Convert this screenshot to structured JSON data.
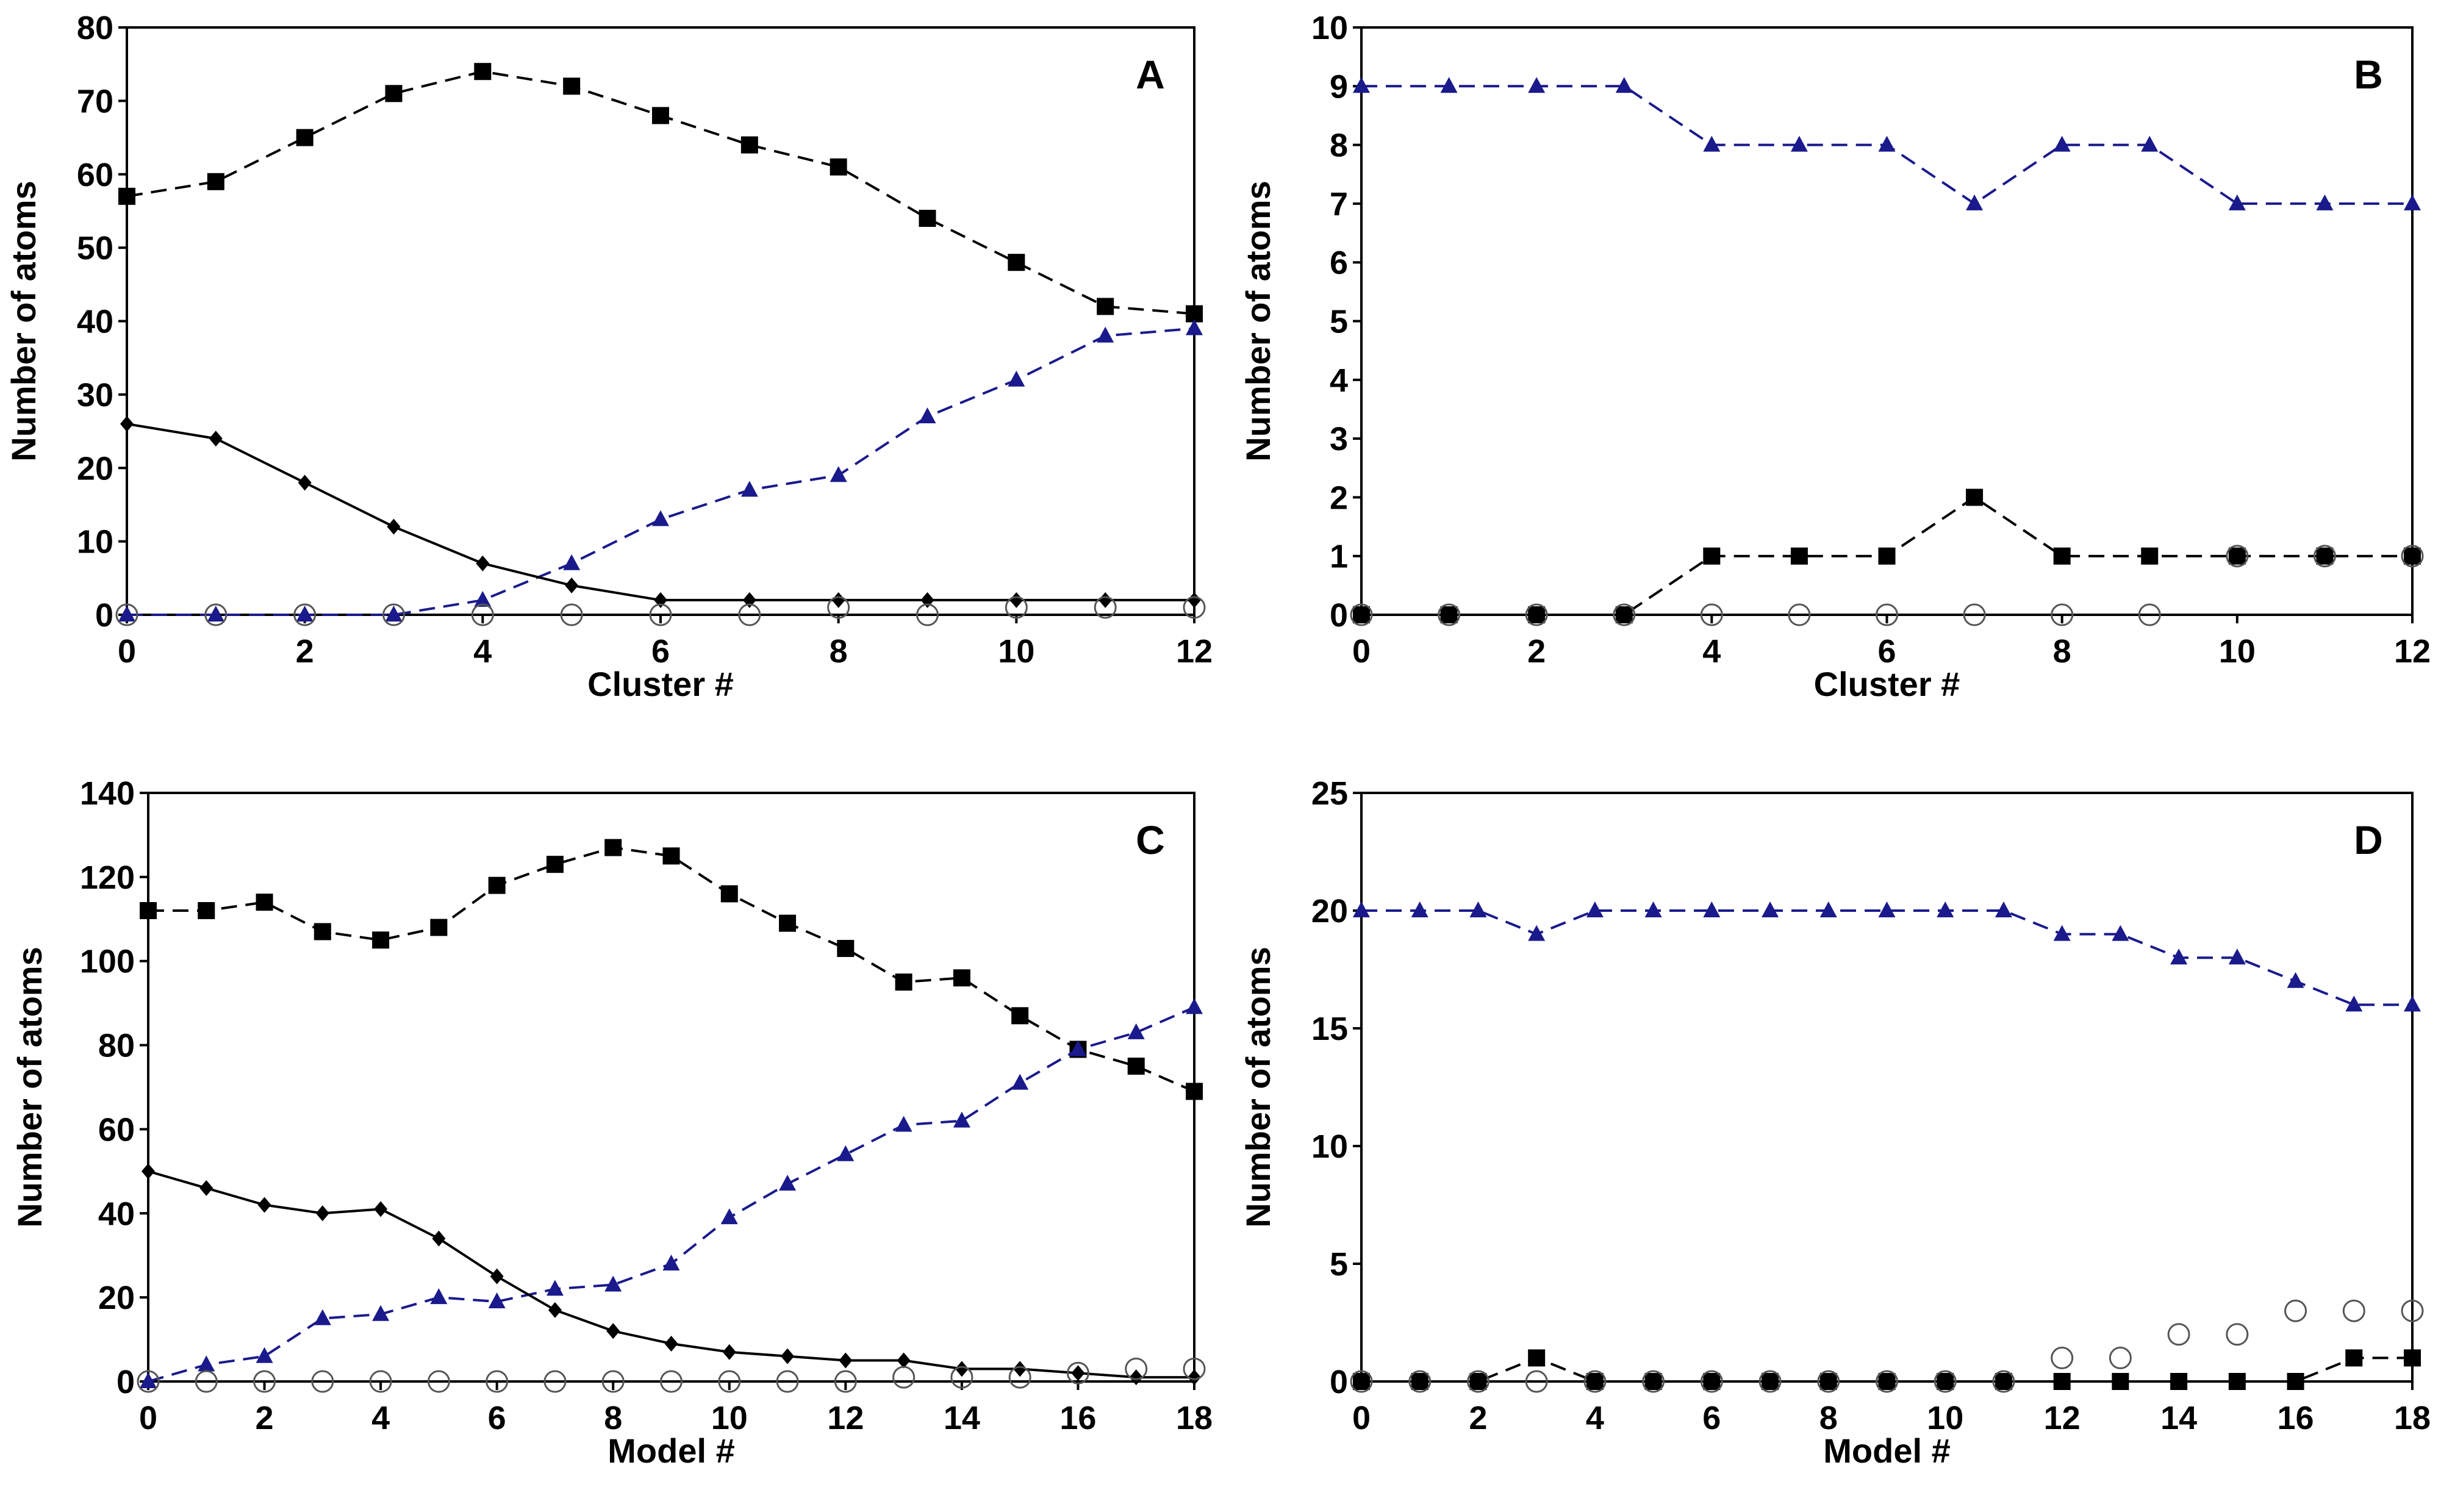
{
  "chart_data": [
    {
      "type": "line",
      "panel_label": "A",
      "xlabel": "Cluster #",
      "ylabel": "Number of atoms",
      "xlim": [
        0,
        12
      ],
      "ylim": [
        0,
        80
      ],
      "x_ticks": [
        0,
        2,
        4,
        6,
        8,
        10,
        12
      ],
      "y_ticks": [
        0,
        10,
        20,
        30,
        40,
        50,
        60,
        70,
        80
      ],
      "grid": false,
      "legend": "none",
      "series": [
        {
          "marker": "square",
          "color": "#000000",
          "dashed": true,
          "x": [
            0,
            1,
            2,
            3,
            4,
            5,
            6,
            7,
            8,
            9,
            10,
            11,
            12
          ],
          "values": [
            57,
            59,
            65,
            71,
            74,
            72,
            68,
            64,
            61,
            54,
            48,
            42,
            41
          ]
        },
        {
          "marker": "triangle",
          "color": "#1a1a8c",
          "dashed": true,
          "x": [
            0,
            1,
            2,
            3,
            4,
            5,
            6,
            7,
            8,
            9,
            10,
            11,
            12
          ],
          "values": [
            0,
            0,
            0,
            0,
            2,
            7,
            13,
            17,
            19,
            27,
            32,
            38,
            39
          ]
        },
        {
          "marker": "diamond",
          "color": "#000000",
          "dashed": false,
          "x": [
            0,
            1,
            2,
            3,
            4,
            5,
            6,
            7,
            8,
            9,
            10,
            11,
            12
          ],
          "values": [
            26,
            24,
            18,
            12,
            7,
            4,
            2,
            2,
            2,
            2,
            2,
            2,
            2
          ]
        },
        {
          "marker": "circle",
          "color": "#555555",
          "dashed": false,
          "line": false,
          "x": [
            0,
            1,
            2,
            3,
            4,
            5,
            6,
            7,
            8,
            9,
            10,
            11,
            12
          ],
          "values": [
            0,
            0,
            0,
            0,
            0,
            0,
            0,
            0,
            1,
            0,
            1,
            1,
            1
          ]
        }
      ]
    },
    {
      "type": "line",
      "panel_label": "B",
      "xlabel": "Cluster #",
      "ylabel": "Number of atoms",
      "xlim": [
        0,
        12
      ],
      "ylim": [
        0,
        10
      ],
      "x_ticks": [
        0,
        2,
        4,
        6,
        8,
        10,
        12
      ],
      "y_ticks": [
        0,
        1,
        2,
        3,
        4,
        5,
        6,
        7,
        8,
        9,
        10
      ],
      "grid": false,
      "legend": "none",
      "series": [
        {
          "marker": "triangle",
          "color": "#1a1a8c",
          "dashed": true,
          "x": [
            0,
            1,
            2,
            3,
            4,
            5,
            6,
            7,
            8,
            9,
            10,
            11,
            12
          ],
          "values": [
            9,
            9,
            9,
            9,
            8,
            8,
            8,
            7,
            8,
            8,
            7,
            7,
            7
          ]
        },
        {
          "marker": "square",
          "color": "#000000",
          "dashed": true,
          "x": [
            0,
            1,
            2,
            3,
            4,
            5,
            6,
            7,
            8,
            9,
            10,
            11,
            12
          ],
          "values": [
            0,
            0,
            0,
            0,
            1,
            1,
            1,
            2,
            1,
            1,
            1,
            1,
            1
          ]
        },
        {
          "marker": "circle",
          "color": "#555555",
          "dashed": false,
          "line": false,
          "x": [
            0,
            1,
            2,
            3,
            4,
            5,
            6,
            7,
            8,
            9,
            10,
            11,
            12
          ],
          "values": [
            0,
            0,
            0,
            0,
            0,
            0,
            0,
            0,
            0,
            0,
            1,
            1,
            1
          ]
        }
      ]
    },
    {
      "type": "line",
      "panel_label": "C",
      "xlabel": "Model #",
      "ylabel": "Number of atoms",
      "xlim": [
        0,
        18
      ],
      "ylim": [
        0,
        140
      ],
      "x_ticks": [
        0,
        2,
        4,
        6,
        8,
        10,
        12,
        14,
        16,
        18
      ],
      "y_ticks": [
        0,
        20,
        40,
        60,
        80,
        100,
        120,
        140
      ],
      "grid": false,
      "legend": "none",
      "series": [
        {
          "marker": "square",
          "color": "#000000",
          "dashed": true,
          "x": [
            0,
            1,
            2,
            3,
            4,
            5,
            6,
            7,
            8,
            9,
            10,
            11,
            12,
            13,
            14,
            15,
            16,
            17,
            18
          ],
          "values": [
            112,
            112,
            114,
            107,
            105,
            108,
            118,
            123,
            127,
            125,
            116,
            109,
            103,
            95,
            96,
            87,
            79,
            75,
            69
          ]
        },
        {
          "marker": "triangle",
          "color": "#1a1a8c",
          "dashed": true,
          "x": [
            0,
            1,
            2,
            3,
            4,
            5,
            6,
            7,
            8,
            9,
            10,
            11,
            12,
            13,
            14,
            15,
            16,
            17,
            18
          ],
          "values": [
            0,
            4,
            6,
            15,
            16,
            20,
            19,
            22,
            23,
            28,
            39,
            47,
            54,
            61,
            62,
            71,
            79,
            83,
            89
          ]
        },
        {
          "marker": "diamond",
          "color": "#000000",
          "dashed": false,
          "x": [
            0,
            1,
            2,
            3,
            4,
            5,
            6,
            7,
            8,
            9,
            10,
            11,
            12,
            13,
            14,
            15,
            16,
            17,
            18
          ],
          "values": [
            50,
            46,
            42,
            40,
            41,
            34,
            25,
            17,
            12,
            9,
            7,
            6,
            5,
            5,
            3,
            3,
            2,
            1,
            1
          ]
        },
        {
          "marker": "circle",
          "color": "#555555",
          "dashed": false,
          "line": false,
          "x": [
            0,
            1,
            2,
            3,
            4,
            5,
            6,
            7,
            8,
            9,
            10,
            11,
            12,
            13,
            14,
            15,
            16,
            17,
            18
          ],
          "values": [
            0,
            0,
            0,
            0,
            0,
            0,
            0,
            0,
            0,
            0,
            0,
            0,
            0,
            1,
            1,
            1,
            2,
            3,
            3
          ]
        }
      ]
    },
    {
      "type": "line",
      "panel_label": "D",
      "xlabel": "Model #",
      "ylabel": "Number of atoms",
      "xlim": [
        0,
        18
      ],
      "ylim": [
        0,
        25
      ],
      "x_ticks": [
        0,
        2,
        4,
        6,
        8,
        10,
        12,
        14,
        16,
        18
      ],
      "y_ticks": [
        0,
        5,
        10,
        15,
        20,
        25
      ],
      "grid": false,
      "legend": "none",
      "series": [
        {
          "marker": "triangle",
          "color": "#1a1a8c",
          "dashed": true,
          "x": [
            0,
            1,
            2,
            3,
            4,
            5,
            6,
            7,
            8,
            9,
            10,
            11,
            12,
            13,
            14,
            15,
            16,
            17,
            18
          ],
          "values": [
            20,
            20,
            20,
            19,
            20,
            20,
            20,
            20,
            20,
            20,
            20,
            20,
            19,
            19,
            18,
            18,
            17,
            16,
            16
          ]
        },
        {
          "marker": "square",
          "color": "#000000",
          "dashed": true,
          "x": [
            0,
            1,
            2,
            3,
            4,
            5,
            6,
            7,
            8,
            9,
            10,
            11,
            12,
            13,
            14,
            15,
            16,
            17,
            18
          ],
          "values": [
            0,
            0,
            0,
            1,
            0,
            0,
            0,
            0,
            0,
            0,
            0,
            0,
            0,
            0,
            0,
            0,
            0,
            1,
            1
          ]
        },
        {
          "marker": "circle",
          "color": "#555555",
          "dashed": false,
          "line": false,
          "x": [
            0,
            1,
            2,
            3,
            4,
            5,
            6,
            7,
            8,
            9,
            10,
            11,
            12,
            13,
            14,
            15,
            16,
            17,
            18
          ],
          "values": [
            0,
            0,
            0,
            0,
            0,
            0,
            0,
            0,
            0,
            0,
            0,
            0,
            1,
            1,
            2,
            2,
            3,
            3,
            3
          ]
        }
      ]
    }
  ]
}
